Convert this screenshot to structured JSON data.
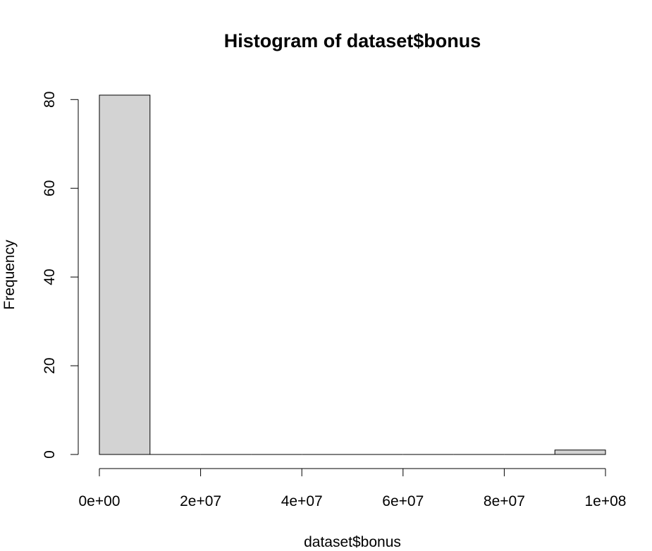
{
  "chart_data": {
    "type": "bar",
    "title": "Histogram of dataset$bonus",
    "xlabel": "dataset$bonus",
    "ylabel": "Frequency",
    "bin_edges": [
      0,
      10000000,
      20000000,
      30000000,
      40000000,
      50000000,
      60000000,
      70000000,
      80000000,
      90000000,
      100000000
    ],
    "values": [
      81,
      0,
      0,
      0,
      0,
      0,
      0,
      0,
      0,
      1
    ],
    "xlim": [
      0,
      100000000
    ],
    "ylim": [
      0,
      81
    ],
    "x_ticks": [
      {
        "value": 0,
        "label": "0e+00"
      },
      {
        "value": 20000000,
        "label": "2e+07"
      },
      {
        "value": 40000000,
        "label": "4e+07"
      },
      {
        "value": 60000000,
        "label": "6e+07"
      },
      {
        "value": 80000000,
        "label": "8e+07"
      },
      {
        "value": 100000000,
        "label": "1e+08"
      }
    ],
    "y_ticks": [
      {
        "value": 0,
        "label": "0"
      },
      {
        "value": 20,
        "label": "20"
      },
      {
        "value": 40,
        "label": "40"
      },
      {
        "value": 60,
        "label": "60"
      },
      {
        "value": 80,
        "label": "80"
      }
    ],
    "bar_color": "#d3d3d3",
    "edge_color": "#000000",
    "grid": false,
    "legend": "none"
  }
}
